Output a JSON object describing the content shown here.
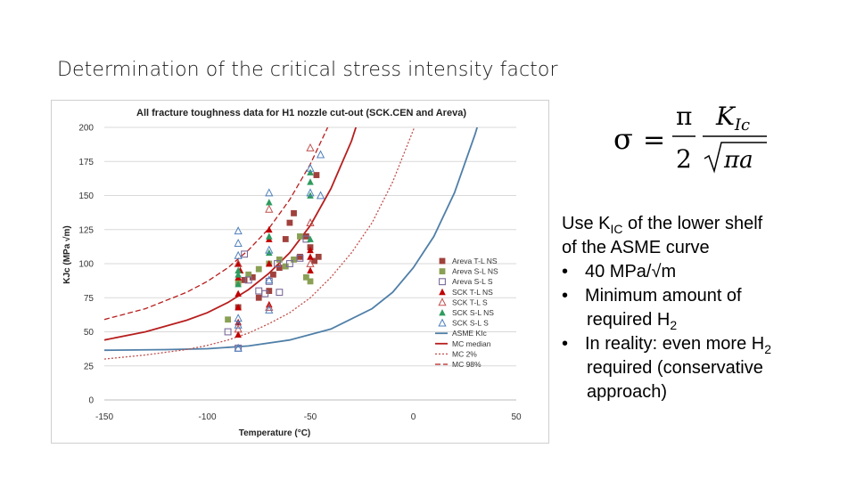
{
  "slide": {
    "title": "Determination of the critical stress intensity factor"
  },
  "formula": {
    "lhs": "σ",
    "eq": "=",
    "num": "π",
    "den": "2",
    "frac_num": "K",
    "frac_num_sub": "Ic",
    "frac_den": "πa"
  },
  "notes": {
    "line1_pre": "Use K",
    "line1_sub": "IC",
    "line1_post": " of the lower shelf",
    "line2": "of the ASME curve",
    "bullets": [
      {
        "text": "40 MPa/√m"
      },
      {
        "text": "Minimum amount of",
        "cont": "required H",
        "cont_sub": "2"
      },
      {
        "text": "In reality: even more H",
        "text_sub": "2",
        "cont": "required (conservative",
        "cont2": "approach)"
      }
    ],
    "bullet_char": "•"
  },
  "chart_data": {
    "type": "scatter",
    "title": "All fracture toughness data for H1 nozzle cut-out (SCK.CEN and Areva)",
    "xlabel": "Temperature (°C)",
    "ylabel": "KJc (MPa √m)",
    "xlim": [
      -150,
      50
    ],
    "ylim": [
      0,
      200
    ],
    "xticks": [
      "-150",
      "-100",
      "-50",
      "0",
      "50"
    ],
    "yticks": [
      "0",
      "25",
      "50",
      "75",
      "100",
      "125",
      "150",
      "175",
      "200"
    ],
    "grid": "horizontal",
    "legend_position": "right",
    "series": [
      {
        "name": "Areva T-L NS",
        "marker": "square",
        "color": "#a0413c",
        "points": [
          [
            -85,
            68
          ],
          [
            -82,
            88
          ],
          [
            -78,
            90
          ],
          [
            -75,
            75
          ],
          [
            -70,
            80
          ],
          [
            -68,
            92
          ],
          [
            -65,
            97
          ],
          [
            -62,
            118
          ],
          [
            -60,
            130
          ],
          [
            -58,
            137
          ],
          [
            -55,
            105
          ],
          [
            -52,
            120
          ],
          [
            -50,
            112
          ],
          [
            -48,
            102
          ],
          [
            -47,
            165
          ],
          [
            -46,
            105
          ]
        ]
      },
      {
        "name": "Areva S-L NS",
        "marker": "square",
        "color": "#8aa055",
        "points": [
          [
            -90,
            59
          ],
          [
            -85,
            86
          ],
          [
            -80,
            92
          ],
          [
            -75,
            96
          ],
          [
            -70,
            100
          ],
          [
            -65,
            103
          ],
          [
            -62,
            98
          ],
          [
            -58,
            103
          ],
          [
            -55,
            120
          ],
          [
            -52,
            90
          ],
          [
            -50,
            87
          ]
        ]
      },
      {
        "name": "Areva S-L S",
        "marker": "open-square",
        "color": "#7b6a9a",
        "points": [
          [
            -90,
            50
          ],
          [
            -85,
            38
          ],
          [
            -82,
            107
          ],
          [
            -80,
            88
          ],
          [
            -75,
            80
          ],
          [
            -72,
            78
          ],
          [
            -70,
            87
          ],
          [
            -66,
            100
          ],
          [
            -65,
            79
          ],
          [
            -60,
            100
          ],
          [
            -55,
            104
          ],
          [
            -52,
            118
          ]
        ]
      },
      {
        "name": "SCK T-L NS",
        "marker": "triangle",
        "color": "#c00000",
        "points": [
          [
            -85,
            48
          ],
          [
            -85,
            57
          ],
          [
            -85,
            68
          ],
          [
            -85,
            78
          ],
          [
            -85,
            90
          ],
          [
            -85,
            100
          ],
          [
            -84,
            95
          ],
          [
            -70,
            70
          ],
          [
            -70,
            100
          ],
          [
            -70,
            118
          ],
          [
            -70,
            125
          ],
          [
            -50,
            95
          ],
          [
            -50,
            105
          ],
          [
            -50,
            110
          ]
        ]
      },
      {
        "name": "SCK T-L S",
        "marker": "open-triangle",
        "color": "#c0504d",
        "points": [
          [
            -85,
            52
          ],
          [
            -85,
            100
          ],
          [
            -70,
            140
          ],
          [
            -70,
            68
          ],
          [
            -50,
            185
          ],
          [
            -50,
            130
          ],
          [
            -50,
            100
          ]
        ]
      },
      {
        "name": "SCK S-L NS",
        "marker": "triangle",
        "color": "#2e9b5f",
        "points": [
          [
            -85,
            85
          ],
          [
            -85,
            92
          ],
          [
            -85,
            95
          ],
          [
            -70,
            108
          ],
          [
            -70,
            120
          ],
          [
            -70,
            145
          ],
          [
            -50,
            118
          ],
          [
            -50,
            150
          ],
          [
            -50,
            160
          ],
          [
            -50,
            167
          ]
        ]
      },
      {
        "name": "SCK S-L S",
        "marker": "open-triangle",
        "color": "#4f81bd",
        "points": [
          [
            -85,
            38
          ],
          [
            -85,
            55
          ],
          [
            -85,
            60
          ],
          [
            -85,
            106
          ],
          [
            -85,
            115
          ],
          [
            -85,
            124
          ],
          [
            -70,
            66
          ],
          [
            -70,
            88
          ],
          [
            -70,
            110
          ],
          [
            -70,
            152
          ],
          [
            -50,
            152
          ],
          [
            -50,
            170
          ],
          [
            -45,
            180
          ],
          [
            -45,
            150
          ]
        ]
      }
    ],
    "curves": [
      {
        "name": "ASME KIc",
        "style": "solid",
        "color": "#4f7fa8",
        "points": [
          [
            -150,
            36.5
          ],
          [
            -120,
            36.9
          ],
          [
            -100,
            37.6
          ],
          [
            -80,
            39.6
          ],
          [
            -60,
            44
          ],
          [
            -40,
            52
          ],
          [
            -20,
            67
          ],
          [
            -10,
            79
          ],
          [
            0,
            97
          ],
          [
            10,
            120
          ],
          [
            20,
            152
          ],
          [
            30,
            195
          ],
          [
            32,
            205
          ]
        ]
      },
      {
        "name": "MC median",
        "style": "solid",
        "color": "#b81e1e",
        "points": [
          [
            -150,
            44
          ],
          [
            -130,
            50
          ],
          [
            -110,
            58.5
          ],
          [
            -100,
            64
          ],
          [
            -90,
            71.5
          ],
          [
            -80,
            81
          ],
          [
            -70,
            93
          ],
          [
            -60,
            108
          ],
          [
            -50,
            128
          ],
          [
            -40,
            155
          ],
          [
            -30,
            190
          ],
          [
            -27,
            204
          ]
        ]
      },
      {
        "name": "MC 2%",
        "style": "dotted",
        "color": "#c0504d",
        "points": [
          [
            -150,
            30
          ],
          [
            -130,
            33
          ],
          [
            -110,
            37
          ],
          [
            -100,
            40
          ],
          [
            -90,
            44
          ],
          [
            -80,
            49
          ],
          [
            -70,
            56
          ],
          [
            -60,
            64
          ],
          [
            -50,
            75
          ],
          [
            -40,
            90
          ],
          [
            -30,
            108
          ],
          [
            -20,
            130
          ],
          [
            -10,
            160
          ],
          [
            0,
            198
          ],
          [
            1,
            202
          ]
        ]
      },
      {
        "name": "MC 98%",
        "style": "dashed",
        "color": "#b81e1e",
        "points": [
          [
            -150,
            59
          ],
          [
            -130,
            67
          ],
          [
            -110,
            79
          ],
          [
            -100,
            87
          ],
          [
            -90,
            97
          ],
          [
            -80,
            110
          ],
          [
            -70,
            126
          ],
          [
            -60,
            147
          ],
          [
            -50,
            173
          ],
          [
            -40,
            205
          ]
        ]
      }
    ]
  }
}
